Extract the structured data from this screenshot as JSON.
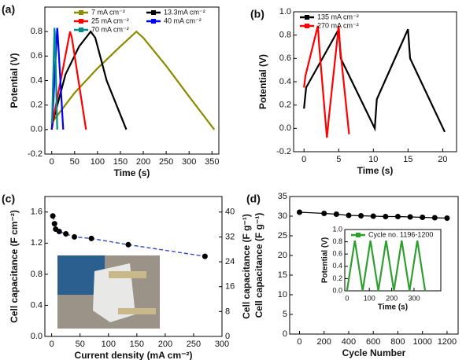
{
  "chart_data": [
    {
      "panel": "(a)",
      "type": "line",
      "x_label": "Time (s)",
      "y_label": "Potential (V)",
      "xlim": [
        -15,
        365
      ],
      "xticks": [
        0,
        50,
        100,
        150,
        200,
        250,
        300,
        350
      ],
      "ylim": [
        -0.2,
        1.0
      ],
      "yticks": [
        -0.2,
        {
          "value": 0,
          "label": "0.0"
        },
        0.2,
        0.4,
        0.6,
        0.8
      ],
      "legend": "upper right",
      "legend_columns": 2,
      "series": [
        {
          "name": "7 mA cm⁻²",
          "color": "#8b8b00",
          "x": [
            0,
            3,
            50,
            100,
            150,
            185,
            200,
            250,
            300,
            355
          ],
          "values": [
            0,
            0.07,
            0.3,
            0.5,
            0.68,
            0.8,
            0.75,
            0.52,
            0.27,
            0
          ]
        },
        {
          "name": "13.3mA cm⁻²",
          "color": "#000000",
          "x": [
            0,
            3,
            30,
            60,
            85,
            95,
            120,
            163
          ],
          "values": [
            0,
            0.07,
            0.45,
            0.68,
            0.8,
            0.75,
            0.4,
            0
          ]
        },
        {
          "name": "25 mA cm⁻²",
          "color": "#ff0000",
          "x": [
            0,
            2,
            40,
            44,
            75
          ],
          "values": [
            0,
            0.06,
            0.8,
            0.75,
            0
          ]
        },
        {
          "name": "40 mA cm⁻²",
          "color": "#0000ff",
          "x": [
            0,
            1,
            12,
            13,
            25
          ],
          "values": [
            0,
            0.05,
            0.83,
            0.78,
            0
          ]
        },
        {
          "name": "70 mA cm⁻²",
          "color": "#008b8b",
          "x": [
            0,
            1,
            6,
            7,
            12
          ],
          "values": [
            0.05,
            0.1,
            0.83,
            0.78,
            0
          ]
        }
      ]
    },
    {
      "panel": "(b)",
      "type": "line",
      "x_label": "Time (s)",
      "y_label": "Potential (V)",
      "xlim": [
        -1.5,
        22
      ],
      "xticks": [
        0,
        5,
        10,
        15,
        20
      ],
      "ylim": [
        -0.2,
        1.0
      ],
      "yticks": [
        -0.2,
        {
          "value": 0,
          "label": "0.0"
        },
        0.2,
        0.4,
        0.6,
        0.8,
        {
          "value": 1,
          "label": "1.0"
        }
      ],
      "legend": "upper left",
      "legend_columns": 1,
      "series": [
        {
          "name": "135 mA cm⁻²",
          "color": "#000000",
          "x": [
            0,
            0.3,
            5,
            5.3,
            10.2,
            10.5,
            15,
            15.3,
            20.3
          ],
          "values": [
            0.17,
            0.35,
            0.85,
            0.6,
            0,
            0.25,
            0.85,
            0.6,
            -0.03
          ]
        },
        {
          "name": "270 mA cm⁻²",
          "color": "#ff0000",
          "x": [
            0,
            0.2,
            2,
            2.2,
            3.3,
            3.6,
            5,
            5.2,
            6.5
          ],
          "values": [
            0.35,
            0.45,
            0.88,
            0.7,
            -0.08,
            0.1,
            0.88,
            0.7,
            -0.05
          ]
        }
      ]
    },
    {
      "panel": "(c)",
      "type": "scatter",
      "x_label": "Current density (mA cm⁻²)",
      "y_label": "Cell capacitance (F cm⁻²)",
      "y2_label": "Cell capacitance (F g⁻¹)",
      "xlim": [
        -12,
        300
      ],
      "xticks": [
        0,
        50,
        100,
        150,
        200,
        250,
        300
      ],
      "ylim": [
        0,
        1.8
      ],
      "yticks": [
        {
          "value": 0,
          "label": "0.0"
        },
        0.4,
        0.8,
        1.2,
        1.6
      ],
      "y2lim": [
        0,
        45
      ],
      "y2ticks": [
        0,
        8,
        16,
        24,
        32,
        40
      ],
      "series": [
        {
          "color": "#000000",
          "line_color": "#1f3fbf",
          "line_style": "dashed",
          "x": [
            2,
            5,
            7,
            13.3,
            25,
            40,
            70,
            135,
            270
          ],
          "values": [
            1.55,
            1.45,
            1.38,
            1.35,
            1.32,
            1.28,
            1.26,
            1.18,
            1.03
          ]
        }
      ]
    },
    {
      "panel": "(d)",
      "type": "scatter",
      "x_label": "Cycle Number",
      "y_label": "Cell capacitance (F g⁻¹)",
      "xlim": [
        -80,
        1290
      ],
      "xticks": [
        0,
        200,
        400,
        600,
        800,
        1000,
        1200
      ],
      "ylim": [
        0,
        35
      ],
      "yticks": [
        0,
        5,
        10,
        15,
        20,
        25,
        30,
        35
      ],
      "series": [
        {
          "color": "#000000",
          "line_color": "#000000",
          "line_style": "solid",
          "x": [
            0,
            200,
            300,
            400,
            500,
            600,
            700,
            800,
            900,
            1000,
            1100,
            1200
          ],
          "values": [
            31,
            30.7,
            30.5,
            30.2,
            30.1,
            30,
            29.9,
            29.9,
            29.8,
            29.7,
            29.6,
            29.5
          ]
        }
      ]
    },
    {
      "type": "line",
      "x_label": "Time (s)",
      "y_label": "Potential (V)",
      "xlim": [
        -10,
        420
      ],
      "xticks": [
        0,
        100,
        200,
        300
      ],
      "ylim": [
        0,
        1.0
      ],
      "yticks": [
        {
          "value": 0,
          "label": "0.0"
        },
        0.2,
        0.4,
        0.6,
        0.8,
        {
          "value": 1,
          "label": "1.0"
        }
      ],
      "legend": "upper left",
      "legend_columns": 1,
      "series": [
        {
          "name": "Cycle no. 1196-1200",
          "color": "#2e9e2e",
          "x": [
            0,
            35,
            70,
            105,
            140,
            175,
            210,
            245,
            280,
            315,
            350
          ],
          "values": [
            0,
            0.82,
            0,
            0.82,
            0,
            0.82,
            0,
            0.82,
            0,
            0.82,
            0
          ]
        }
      ]
    }
  ]
}
